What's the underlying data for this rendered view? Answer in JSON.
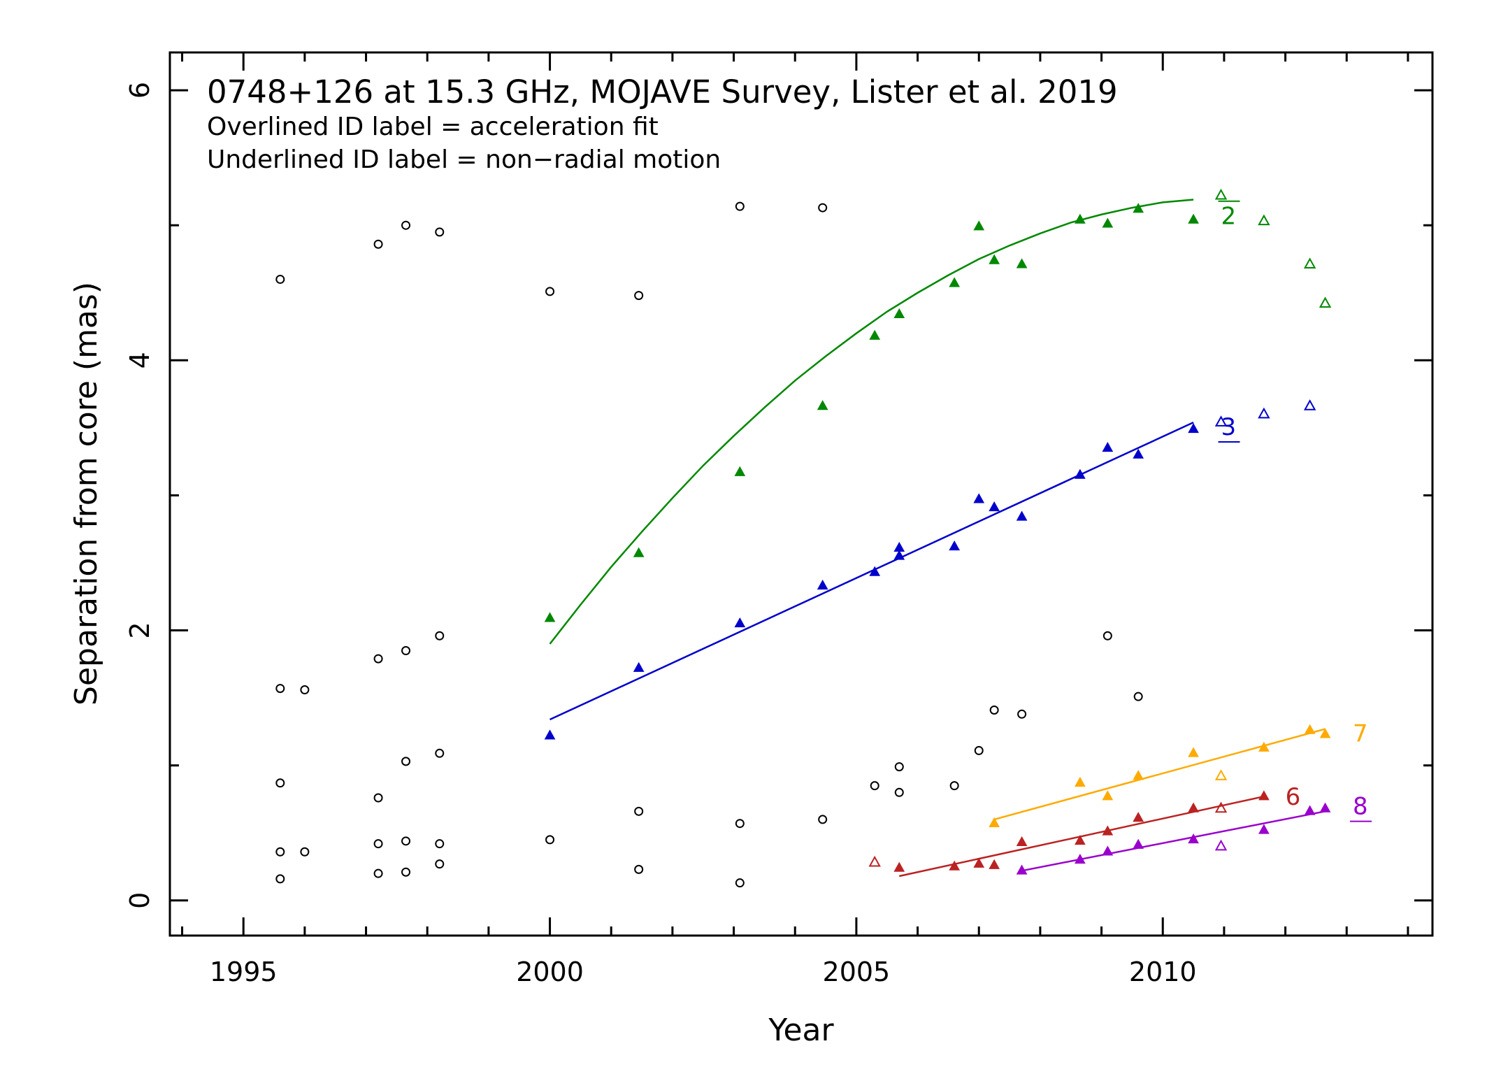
{
  "chart_data": {
    "type": "scatter",
    "title": "0748+126 at 15.3 GHz, MOJAVE Survey, Lister et al. 2019",
    "subtitles": [
      "Overlined ID label = acceleration fit",
      "Underlined ID label = non−radial motion"
    ],
    "xlabel": "Year",
    "ylabel": "Separation from core (mas)",
    "xlim": [
      1993.8,
      2014.4
    ],
    "ylim": [
      -0.26,
      6.28
    ],
    "xticks": [
      {
        "v": 1995,
        "label": "1995"
      },
      {
        "v": 2000,
        "label": "2000"
      },
      {
        "v": 2005,
        "label": "2005"
      },
      {
        "v": 2010,
        "label": "2010"
      }
    ],
    "yticks": [
      {
        "v": 0,
        "label": "0"
      },
      {
        "v": 2,
        "label": "2"
      },
      {
        "v": 4,
        "label": "4"
      },
      {
        "v": 6,
        "label": "6"
      }
    ],
    "grid": false,
    "legend": "none",
    "unassigned": {
      "color": "#000000",
      "marker": "open-circle",
      "x": [
        1995.6,
        1995.6,
        1995.6,
        1995.6,
        1995.6,
        1996.0,
        1996.0,
        1997.2,
        1997.2,
        1997.2,
        1997.2,
        1997.2,
        1997.65,
        1997.65,
        1997.65,
        1997.65,
        1997.65,
        1998.2,
        1998.2,
        1998.2,
        1998.2,
        1998.2,
        2000.0,
        2000.0,
        2001.45,
        2001.45,
        2001.45,
        2003.1,
        2003.1,
        2003.1,
        2004.45,
        2004.45,
        2005.3,
        2005.7,
        2005.7,
        2006.6,
        2007.0,
        2007.25,
        2007.7,
        2009.1,
        2009.6
      ],
      "y": [
        4.6,
        1.57,
        0.87,
        0.36,
        0.16,
        1.56,
        0.36,
        4.86,
        1.79,
        0.76,
        0.42,
        0.2,
        5.0,
        1.85,
        1.03,
        0.44,
        0.21,
        4.95,
        1.96,
        1.09,
        0.42,
        0.27,
        4.51,
        0.45,
        4.48,
        0.66,
        0.23,
        5.14,
        0.57,
        0.13,
        5.13,
        0.6,
        0.85,
        0.99,
        0.8,
        0.85,
        1.11,
        1.41,
        1.38,
        1.96,
        1.51
      ]
    },
    "series": [
      {
        "id": "2",
        "color": "#008800",
        "label_mark": "overline",
        "fit": "acceleration",
        "fit_x": [
          2000.0,
          2000.5,
          2001.0,
          2001.5,
          2002.0,
          2002.5,
          2003.0,
          2003.5,
          2004.0,
          2004.5,
          2005.0,
          2005.5,
          2006.0,
          2006.5,
          2007.0,
          2007.5,
          2008.0,
          2008.5,
          2009.0,
          2009.5,
          2010.0,
          2010.5
        ],
        "fit_y": [
          1.9,
          2.19,
          2.47,
          2.73,
          2.98,
          3.22,
          3.44,
          3.65,
          3.85,
          4.03,
          4.2,
          4.36,
          4.5,
          4.63,
          4.75,
          4.85,
          4.94,
          5.02,
          5.08,
          5.13,
          5.17,
          5.19
        ],
        "x": [
          2000.0,
          2001.45,
          2003.1,
          2004.45,
          2005.3,
          2005.7,
          2006.6,
          2007.0,
          2007.25,
          2007.7,
          2008.65,
          2009.1,
          2009.6,
          2010.5
        ],
        "y": [
          2.09,
          2.57,
          3.17,
          3.66,
          4.18,
          4.34,
          4.57,
          4.99,
          4.74,
          4.71,
          5.04,
          5.01,
          5.12,
          5.04
        ],
        "excluded_x": [
          2010.95,
          2011.65,
          2012.4,
          2012.65
        ],
        "excluded_y": [
          5.22,
          5.03,
          4.71,
          4.42
        ]
      },
      {
        "id": "3",
        "color": "#0000cc",
        "label_mark": "underline",
        "fit": "linear",
        "fit_x": [
          2000.0,
          2010.5
        ],
        "fit_y": [
          1.34,
          3.54
        ],
        "x": [
          2000.0,
          2001.45,
          2003.1,
          2004.45,
          2005.3,
          2005.7,
          2005.7,
          2006.6,
          2007.0,
          2007.25,
          2007.7,
          2008.65,
          2009.1,
          2009.6,
          2010.5
        ],
        "y": [
          1.22,
          1.72,
          2.05,
          2.33,
          2.43,
          2.61,
          2.55,
          2.62,
          2.97,
          2.91,
          2.84,
          3.15,
          3.35,
          3.3,
          3.49
        ],
        "excluded_x": [
          2010.95,
          2011.65,
          2012.4
        ],
        "excluded_y": [
          3.54,
          3.6,
          3.66
        ]
      },
      {
        "id": "6",
        "color": "#bb2222",
        "label_mark": "none",
        "fit": "linear",
        "fit_x": [
          2005.7,
          2011.65
        ],
        "fit_y": [
          0.18,
          0.77
        ],
        "x": [
          2005.7,
          2006.6,
          2007.0,
          2007.25,
          2007.7,
          2008.65,
          2009.1,
          2009.6,
          2010.5,
          2011.65
        ],
        "y": [
          0.24,
          0.25,
          0.27,
          0.26,
          0.43,
          0.44,
          0.51,
          0.61,
          0.68,
          0.77
        ],
        "excluded_x": [
          2005.3,
          2010.95
        ],
        "excluded_y": [
          0.28,
          0.68
        ]
      },
      {
        "id": "7",
        "color": "#ffaa00",
        "label_mark": "none",
        "fit": "linear",
        "fit_x": [
          2007.25,
          2012.65
        ],
        "fit_y": [
          0.6,
          1.27
        ],
        "x": [
          2007.25,
          2008.65,
          2009.1,
          2009.6,
          2010.5,
          2011.65,
          2012.4,
          2012.65
        ],
        "y": [
          0.57,
          0.87,
          0.77,
          0.92,
          1.09,
          1.13,
          1.26,
          1.23
        ],
        "excluded_x": [
          2010.95
        ],
        "excluded_y": [
          0.92
        ]
      },
      {
        "id": "8",
        "color": "#9900cc",
        "label_mark": "underline",
        "fit": "linear",
        "fit_x": [
          2007.7,
          2012.65
        ],
        "fit_y": [
          0.22,
          0.66
        ],
        "x": [
          2007.7,
          2008.65,
          2009.1,
          2009.6,
          2010.5,
          2011.65,
          2012.4,
          2012.65
        ],
        "y": [
          0.22,
          0.3,
          0.36,
          0.41,
          0.45,
          0.52,
          0.66,
          0.68
        ],
        "excluded_x": [
          2010.95
        ],
        "excluded_y": [
          0.4
        ]
      }
    ],
    "id_labels": [
      {
        "id": "2",
        "color": "#008800",
        "x": 2010.95,
        "y": 5.08,
        "mark": "overline"
      },
      {
        "id": "3",
        "color": "#0000cc",
        "x": 2010.95,
        "y": 3.52,
        "mark": "underline"
      },
      {
        "id": "6",
        "color": "#bb2222",
        "x": 2012.0,
        "y": 0.78,
        "mark": "none"
      },
      {
        "id": "7",
        "color": "#ffaa00",
        "x": 2013.1,
        "y": 1.25,
        "mark": "none"
      },
      {
        "id": "8",
        "color": "#9900cc",
        "x": 2013.1,
        "y": 0.71,
        "mark": "underline"
      }
    ]
  }
}
